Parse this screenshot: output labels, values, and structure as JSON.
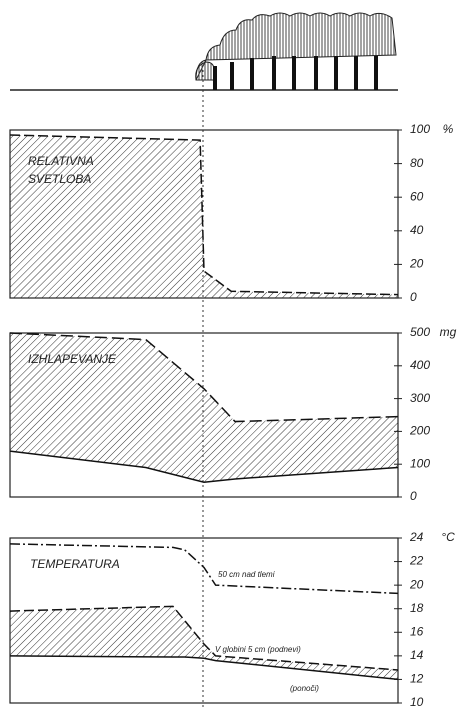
{
  "chart_data": [
    {
      "type": "area",
      "title": [
        "RELATIVNA",
        "SVETLOBA"
      ],
      "unit": "%",
      "x": [
        0,
        49,
        50,
        57,
        100
      ],
      "xlim": [
        0,
        100
      ],
      "series": [
        {
          "values": [
            97,
            94,
            16,
            4,
            2
          ],
          "dash": "10 4"
        }
      ],
      "fill": [
        0
      ],
      "ylim": [
        0,
        100
      ],
      "yticks": [
        0,
        20,
        40,
        60,
        80,
        100
      ]
    },
    {
      "type": "area",
      "title": [
        "IZHLAPEVANJE"
      ],
      "unit": "mg",
      "x": [
        0,
        35,
        50,
        58,
        100
      ],
      "xlim": [
        0,
        100
      ],
      "series": [
        {
          "values": [
            500,
            480,
            330,
            230,
            245
          ],
          "dash": "12 5"
        },
        {
          "values": [
            140,
            90,
            45,
            55,
            90
          ],
          "dash": "none"
        }
      ],
      "fill": [
        0,
        1
      ],
      "ylim": [
        0,
        500
      ],
      "yticks": [
        0,
        100,
        200,
        300,
        400,
        500
      ]
    },
    {
      "type": "area",
      "title": [
        "TEMPERATURA"
      ],
      "unit": "°C",
      "x": [
        0,
        42,
        45,
        50,
        53,
        100
      ],
      "xlim": [
        0,
        100
      ],
      "series": [
        {
          "label": "50 cm nad tlemi",
          "values": [
            23.5,
            23.2,
            23,
            21.5,
            20,
            19.3
          ],
          "dash": "10 3 2 3"
        },
        {
          "label": "V globini 5 cm (podnevi)",
          "values": [
            17.8,
            18.2,
            17,
            15,
            14,
            12.8
          ],
          "dash": "10 4"
        },
        {
          "label": "(ponoči)",
          "values": [
            14,
            13.9,
            13.9,
            13.8,
            13.6,
            12
          ],
          "dash": "none"
        }
      ],
      "fill": [
        1,
        2
      ],
      "ylim": [
        10,
        24
      ],
      "yticks": [
        10,
        12,
        14,
        16,
        18,
        20,
        22,
        24
      ]
    }
  ]
}
